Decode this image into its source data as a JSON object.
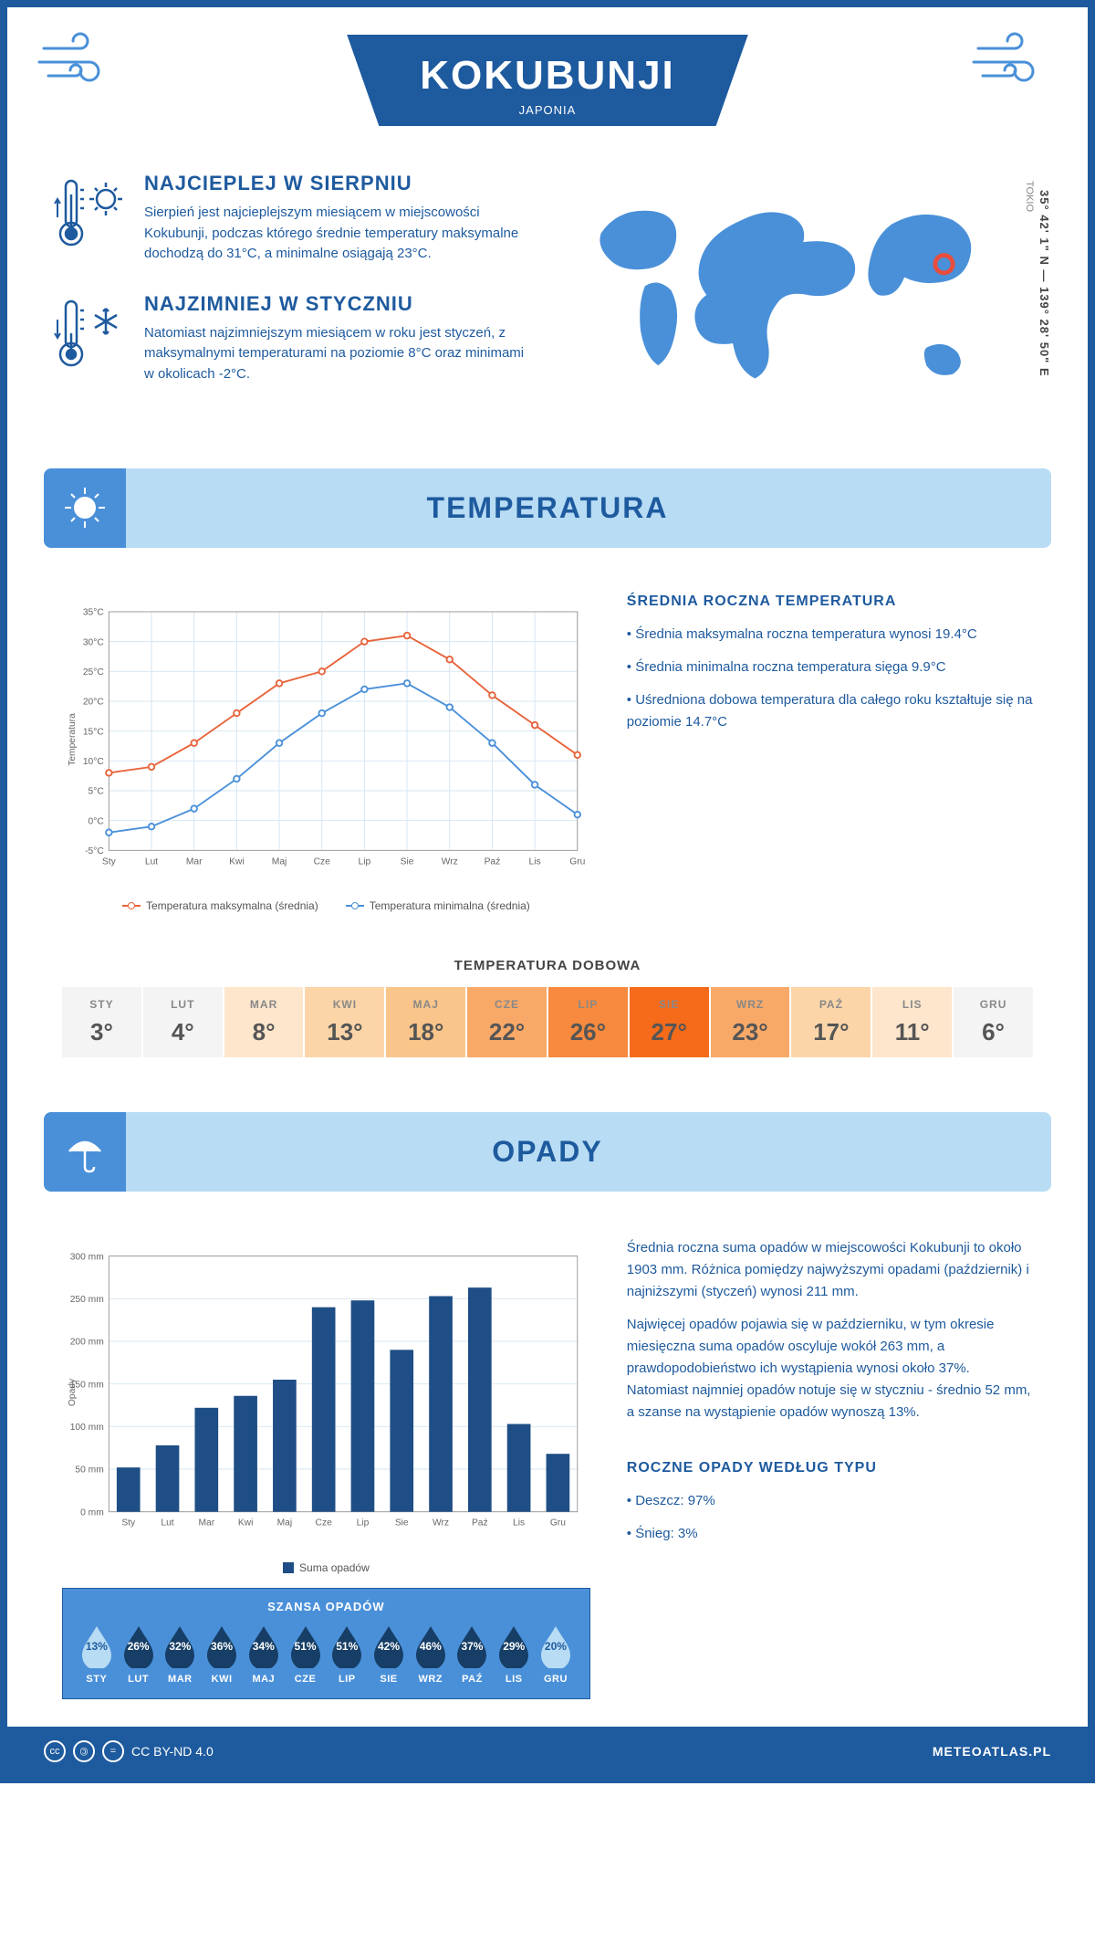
{
  "header": {
    "city": "KOKUBUNJI",
    "country": "JAPONIA"
  },
  "facts": {
    "hot": {
      "title": "NAJCIEPLEJ W SIERPNIU",
      "text": "Sierpień jest najcieplejszym miesiącem w miejscowości Kokubunji, podczas którego średnie temperatury maksymalne dochodzą do 31°C, a minimalne osiągają 23°C."
    },
    "cold": {
      "title": "NAJZIMNIEJ W STYCZNIU",
      "text": "Natomiast najzimniejszym miesiącem w roku jest styczeń, z maksymalnymi temperaturami na poziomie 8°C oraz minimami w okolicach -2°C."
    }
  },
  "map": {
    "coords": "35° 42' 1\" N — 139° 28' 50\" E",
    "near": "TOKIO"
  },
  "months": [
    "Sty",
    "Lut",
    "Mar",
    "Kwi",
    "Maj",
    "Cze",
    "Lip",
    "Sie",
    "Wrz",
    "Paź",
    "Lis",
    "Gru"
  ],
  "months_upper": [
    "STY",
    "LUT",
    "MAR",
    "KWI",
    "MAJ",
    "CZE",
    "LIP",
    "SIE",
    "WRZ",
    "PAŹ",
    "LIS",
    "GRU"
  ],
  "temperature": {
    "section_title": "TEMPERATURA",
    "chart": {
      "type": "line",
      "y_label": "Temperatura",
      "ylim": [
        -5,
        35
      ],
      "ytick_step": 5,
      "y_suffix": "°C",
      "max_series": {
        "label": "Temperatura maksymalna (średnia)",
        "color": "#e8633a",
        "values": [
          8,
          9,
          13,
          18,
          23,
          25,
          30,
          31,
          27,
          21,
          16,
          11
        ]
      },
      "min_series": {
        "label": "Temperatura minimalna (średnia)",
        "color": "#4a90d9",
        "values": [
          -2,
          -1,
          2,
          7,
          13,
          18,
          22,
          23,
          19,
          13,
          6,
          1
        ]
      },
      "grid_color": "#d5e5f2",
      "background": "#ffffff"
    },
    "annual": {
      "title": "ŚREDNIA ROCZNA TEMPERATURA",
      "bullets": [
        "Średnia maksymalna roczna temperatura wynosi 19.4°C",
        "Średnia minimalna roczna temperatura sięga 9.9°C",
        "Uśredniona dobowa temperatura dla całego roku kształtuje się na poziomie 14.7°C"
      ]
    },
    "daily": {
      "title": "TEMPERATURA DOBOWA",
      "values": [
        3,
        4,
        8,
        13,
        18,
        22,
        26,
        27,
        23,
        17,
        11,
        6
      ],
      "colors": [
        "#f4f4f4",
        "#f4f4f4",
        "#fde6cc",
        "#fbd5a8",
        "#fac58a",
        "#f8a968",
        "#f78a3e",
        "#f56b1a",
        "#f8a968",
        "#fbd5a8",
        "#fde6cc",
        "#f4f4f4"
      ]
    }
  },
  "precip": {
    "section_title": "OPADY",
    "chart": {
      "type": "bar",
      "y_label": "Opady",
      "ylim": [
        0,
        300
      ],
      "ytick_step": 50,
      "y_suffix": " mm",
      "bar_color": "#1e4e85",
      "values": [
        52,
        78,
        122,
        136,
        155,
        240,
        248,
        190,
        253,
        263,
        103,
        68
      ],
      "legend": "Suma opadów",
      "grid_color": "#d5e5f2"
    },
    "text": {
      "p1": "Średnia roczna suma opadów w miejscowości Kokubunji to około 1903 mm. Różnica pomiędzy najwyższymi opadami (październik) i najniższymi (styczeń) wynosi 211 mm.",
      "p2": "Najwięcej opadów pojawia się w październiku, w tym okresie miesięczna suma opadów oscyluje wokół 263 mm, a prawdopodobieństwo ich wystąpienia wynosi około 37%. Natomiast najmniej opadów notuje się w styczniu - średnio 52 mm, a szanse na wystąpienie opadów wynoszą 13%."
    },
    "chance": {
      "title": "SZANSA OPADÓW",
      "values": [
        13,
        26,
        32,
        36,
        34,
        51,
        51,
        42,
        46,
        37,
        29,
        20
      ],
      "drop_dark": "#163e66",
      "drop_light": "#b8dcf4"
    },
    "by_type": {
      "title": "ROCZNE OPADY WEDŁUG TYPU",
      "items": [
        "Deszcz: 97%",
        "Śnieg: 3%"
      ]
    }
  },
  "footer": {
    "license": "CC BY-ND 4.0",
    "site": "METEOATLAS.PL"
  },
  "colors": {
    "brand": "#1e5a9e",
    "accent": "#4a90d9",
    "section_bg": "#b8dcf4"
  }
}
